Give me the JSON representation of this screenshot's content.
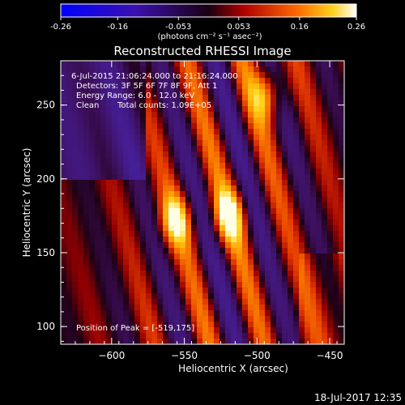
{
  "colorbar": {
    "ticks": [
      "-0.26",
      "-0.16",
      "-0.053",
      "0.053",
      "0.16",
      "0.26"
    ],
    "unit_label": "(photons cm⁻² s⁻¹ asec⁻²)",
    "range": [
      -0.26,
      0.26
    ]
  },
  "chart_data": {
    "type": "heatmap",
    "title": "Reconstructed RHESSI Image",
    "xlabel": "Heliocentric X (arcsec)",
    "ylabel": "Heliocentric Y (arcsec)",
    "xlim": [
      -635,
      -440
    ],
    "ylim": [
      88,
      280
    ],
    "x_ticks": [
      -600,
      -550,
      -500,
      -450
    ],
    "x_tick_labels": [
      "−600",
      "−550",
      "−500",
      "−450"
    ],
    "y_ticks": [
      100,
      150,
      200,
      250
    ],
    "y_tick_labels": [
      "100",
      "150",
      "200",
      "250"
    ],
    "colormap": "hot-with-blue-purple-negatives",
    "annotations": [
      "6-Jul-2015 21:06:24.000 to 21:16:24.000",
      "Detectors: 3F 5F 6F 7F 8F 9F, Att 1",
      "Energy Range: 6.0 - 12.0 keV",
      "Clean",
      "Total counts: 1.09E+05"
    ],
    "peak_label": "Position of Peak = [-519,175]",
    "peak": {
      "x": -519,
      "y": 175
    },
    "sources": [
      {
        "x": -519,
        "y": 175,
        "relative_intensity": 1.0
      },
      {
        "x": -556,
        "y": 172,
        "relative_intensity": 0.93
      },
      {
        "x": -493,
        "y": 258,
        "relative_intensity": 0.85
      }
    ],
    "grid": false
  },
  "timestamp": "18-Jul-2017 12:35"
}
